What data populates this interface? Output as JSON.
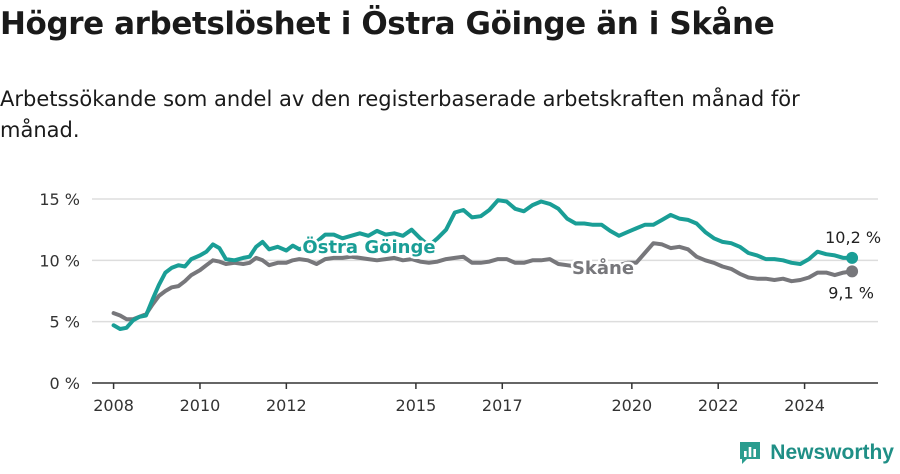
{
  "title": "Högre arbetslöshet i Östra Göinge än i Skåne",
  "subtitle": "Arbetssökande som andel av den registerbaserade arbetskraften månad för månad.",
  "brand": "Newsworthy",
  "colors": {
    "primary": "#1a9e96",
    "secondary": "#77777b",
    "grid": "#dddddd",
    "axis": "#333333"
  },
  "chart_data": {
    "type": "line",
    "title": "Högre arbetslöshet i Östra Göinge än i Skåne",
    "xlabel": "",
    "ylabel": "",
    "xlim": [
      2007.5,
      2025.7
    ],
    "ylim": [
      0,
      16
    ],
    "y_ticks": [
      0,
      5,
      10,
      15
    ],
    "y_tick_labels": [
      "0 %",
      "5 %",
      "10 %",
      "15 %"
    ],
    "x_ticks": [
      2008,
      2010,
      2012,
      2015,
      2017,
      2020,
      2022,
      2024
    ],
    "x_tick_labels": [
      "2008",
      "2010",
      "2012",
      "2015",
      "2017",
      "2020",
      "2022",
      "2024"
    ],
    "series": [
      {
        "name": "Östra Göinge",
        "color": "#1a9e96",
        "label": "Östra Göinge",
        "end_label": "10,2 %",
        "points": [
          [
            2008.0,
            4.7
          ],
          [
            2008.15,
            4.4
          ],
          [
            2008.3,
            4.5
          ],
          [
            2008.45,
            5.1
          ],
          [
            2008.6,
            5.4
          ],
          [
            2008.75,
            5.5
          ],
          [
            2008.9,
            6.8
          ],
          [
            2009.05,
            8.0
          ],
          [
            2009.2,
            9.0
          ],
          [
            2009.35,
            9.4
          ],
          [
            2009.5,
            9.6
          ],
          [
            2009.65,
            9.5
          ],
          [
            2009.8,
            10.1
          ],
          [
            2010.0,
            10.4
          ],
          [
            2010.15,
            10.7
          ],
          [
            2010.3,
            11.3
          ],
          [
            2010.45,
            11.0
          ],
          [
            2010.6,
            10.1
          ],
          [
            2010.8,
            10.0
          ],
          [
            2011.0,
            10.2
          ],
          [
            2011.15,
            10.3
          ],
          [
            2011.3,
            11.1
          ],
          [
            2011.45,
            11.5
          ],
          [
            2011.6,
            10.9
          ],
          [
            2011.8,
            11.1
          ],
          [
            2012.0,
            10.8
          ],
          [
            2012.15,
            11.2
          ],
          [
            2012.3,
            10.9
          ],
          [
            2012.5,
            11.2
          ],
          [
            2012.7,
            11.5
          ],
          [
            2012.9,
            12.1
          ],
          [
            2013.1,
            12.1
          ],
          [
            2013.3,
            11.8
          ],
          [
            2013.5,
            12.0
          ],
          [
            2013.7,
            12.2
          ],
          [
            2013.9,
            12.0
          ],
          [
            2014.1,
            12.4
          ],
          [
            2014.3,
            12.1
          ],
          [
            2014.5,
            12.2
          ],
          [
            2014.7,
            12.0
          ],
          [
            2014.9,
            12.5
          ],
          [
            2015.1,
            11.8
          ],
          [
            2015.3,
            11.2
          ],
          [
            2015.5,
            11.8
          ],
          [
            2015.7,
            12.5
          ],
          [
            2015.9,
            13.9
          ],
          [
            2016.1,
            14.1
          ],
          [
            2016.3,
            13.5
          ],
          [
            2016.5,
            13.6
          ],
          [
            2016.7,
            14.1
          ],
          [
            2016.9,
            14.9
          ],
          [
            2017.1,
            14.8
          ],
          [
            2017.3,
            14.2
          ],
          [
            2017.5,
            14.0
          ],
          [
            2017.7,
            14.5
          ],
          [
            2017.9,
            14.8
          ],
          [
            2018.1,
            14.6
          ],
          [
            2018.3,
            14.2
          ],
          [
            2018.5,
            13.4
          ],
          [
            2018.7,
            13.0
          ],
          [
            2018.9,
            13.0
          ],
          [
            2019.1,
            12.9
          ],
          [
            2019.3,
            12.9
          ],
          [
            2019.5,
            12.4
          ],
          [
            2019.7,
            12.0
          ],
          [
            2019.9,
            12.3
          ],
          [
            2020.1,
            12.6
          ],
          [
            2020.3,
            12.9
          ],
          [
            2020.5,
            12.9
          ],
          [
            2020.7,
            13.3
          ],
          [
            2020.9,
            13.7
          ],
          [
            2021.1,
            13.4
          ],
          [
            2021.3,
            13.3
          ],
          [
            2021.5,
            13.0
          ],
          [
            2021.7,
            12.3
          ],
          [
            2021.9,
            11.8
          ],
          [
            2022.1,
            11.5
          ],
          [
            2022.3,
            11.4
          ],
          [
            2022.5,
            11.1
          ],
          [
            2022.7,
            10.6
          ],
          [
            2022.9,
            10.4
          ],
          [
            2023.1,
            10.1
          ],
          [
            2023.3,
            10.1
          ],
          [
            2023.5,
            10.0
          ],
          [
            2023.7,
            9.8
          ],
          [
            2023.9,
            9.7
          ],
          [
            2024.1,
            10.1
          ],
          [
            2024.3,
            10.7
          ],
          [
            2024.5,
            10.5
          ],
          [
            2024.7,
            10.4
          ],
          [
            2024.9,
            10.2
          ],
          [
            2025.1,
            10.2
          ]
        ]
      },
      {
        "name": "Skåne",
        "color": "#77777b",
        "label": "Skåne",
        "end_label": "9,1 %",
        "points": [
          [
            2008.0,
            5.7
          ],
          [
            2008.15,
            5.5
          ],
          [
            2008.3,
            5.2
          ],
          [
            2008.45,
            5.2
          ],
          [
            2008.6,
            5.4
          ],
          [
            2008.75,
            5.6
          ],
          [
            2008.9,
            6.4
          ],
          [
            2009.05,
            7.1
          ],
          [
            2009.2,
            7.5
          ],
          [
            2009.35,
            7.8
          ],
          [
            2009.5,
            7.9
          ],
          [
            2009.65,
            8.3
          ],
          [
            2009.8,
            8.8
          ],
          [
            2010.0,
            9.2
          ],
          [
            2010.15,
            9.6
          ],
          [
            2010.3,
            10.0
          ],
          [
            2010.45,
            9.9
          ],
          [
            2010.6,
            9.7
          ],
          [
            2010.8,
            9.8
          ],
          [
            2011.0,
            9.7
          ],
          [
            2011.15,
            9.8
          ],
          [
            2011.3,
            10.2
          ],
          [
            2011.45,
            10.0
          ],
          [
            2011.6,
            9.6
          ],
          [
            2011.8,
            9.8
          ],
          [
            2012.0,
            9.8
          ],
          [
            2012.15,
            10.0
          ],
          [
            2012.3,
            10.1
          ],
          [
            2012.5,
            10.0
          ],
          [
            2012.7,
            9.7
          ],
          [
            2012.9,
            10.1
          ],
          [
            2013.1,
            10.2
          ],
          [
            2013.3,
            10.2
          ],
          [
            2013.5,
            10.3
          ],
          [
            2013.7,
            10.2
          ],
          [
            2013.9,
            10.1
          ],
          [
            2014.1,
            10.0
          ],
          [
            2014.3,
            10.1
          ],
          [
            2014.5,
            10.2
          ],
          [
            2014.7,
            10.0
          ],
          [
            2014.9,
            10.1
          ],
          [
            2015.1,
            9.9
          ],
          [
            2015.3,
            9.8
          ],
          [
            2015.5,
            9.9
          ],
          [
            2015.7,
            10.1
          ],
          [
            2015.9,
            10.2
          ],
          [
            2016.1,
            10.3
          ],
          [
            2016.3,
            9.8
          ],
          [
            2016.5,
            9.8
          ],
          [
            2016.7,
            9.9
          ],
          [
            2016.9,
            10.1
          ],
          [
            2017.1,
            10.1
          ],
          [
            2017.3,
            9.8
          ],
          [
            2017.5,
            9.8
          ],
          [
            2017.7,
            10.0
          ],
          [
            2017.9,
            10.0
          ],
          [
            2018.1,
            10.1
          ],
          [
            2018.3,
            9.7
          ],
          [
            2018.5,
            9.6
          ],
          [
            2018.7,
            9.5
          ],
          [
            2018.9,
            9.5
          ],
          [
            2019.1,
            9.6
          ],
          [
            2019.3,
            9.6
          ],
          [
            2019.5,
            9.5
          ],
          [
            2019.7,
            9.6
          ],
          [
            2019.9,
            9.8
          ],
          [
            2020.1,
            9.8
          ],
          [
            2020.3,
            10.6
          ],
          [
            2020.5,
            11.4
          ],
          [
            2020.7,
            11.3
          ],
          [
            2020.9,
            11.0
          ],
          [
            2021.1,
            11.1
          ],
          [
            2021.3,
            10.9
          ],
          [
            2021.5,
            10.3
          ],
          [
            2021.7,
            10.0
          ],
          [
            2021.9,
            9.8
          ],
          [
            2022.1,
            9.5
          ],
          [
            2022.3,
            9.3
          ],
          [
            2022.5,
            8.9
          ],
          [
            2022.7,
            8.6
          ],
          [
            2022.9,
            8.5
          ],
          [
            2023.1,
            8.5
          ],
          [
            2023.3,
            8.4
          ],
          [
            2023.5,
            8.5
          ],
          [
            2023.7,
            8.3
          ],
          [
            2023.9,
            8.4
          ],
          [
            2024.1,
            8.6
          ],
          [
            2024.3,
            9.0
          ],
          [
            2024.5,
            9.0
          ],
          [
            2024.7,
            8.8
          ],
          [
            2024.9,
            9.0
          ],
          [
            2025.1,
            9.1
          ]
        ]
      }
    ]
  }
}
